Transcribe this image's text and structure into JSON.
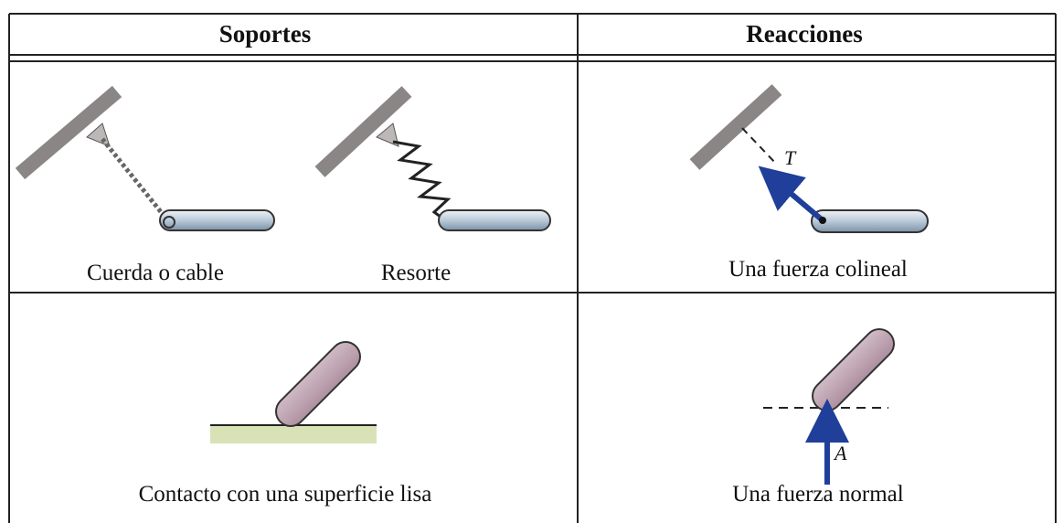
{
  "table": {
    "headers": [
      "Soportes",
      "Reacciones"
    ],
    "rows": [
      {
        "supports": [
          "Cuerda o cable",
          "Resorte"
        ],
        "reaction": "Una fuerza colineal",
        "force_label": "T"
      },
      {
        "supports": [
          "Contacto con una superficie lisa"
        ],
        "reaction": "Una fuerza normal",
        "force_label": "A"
      }
    ]
  }
}
